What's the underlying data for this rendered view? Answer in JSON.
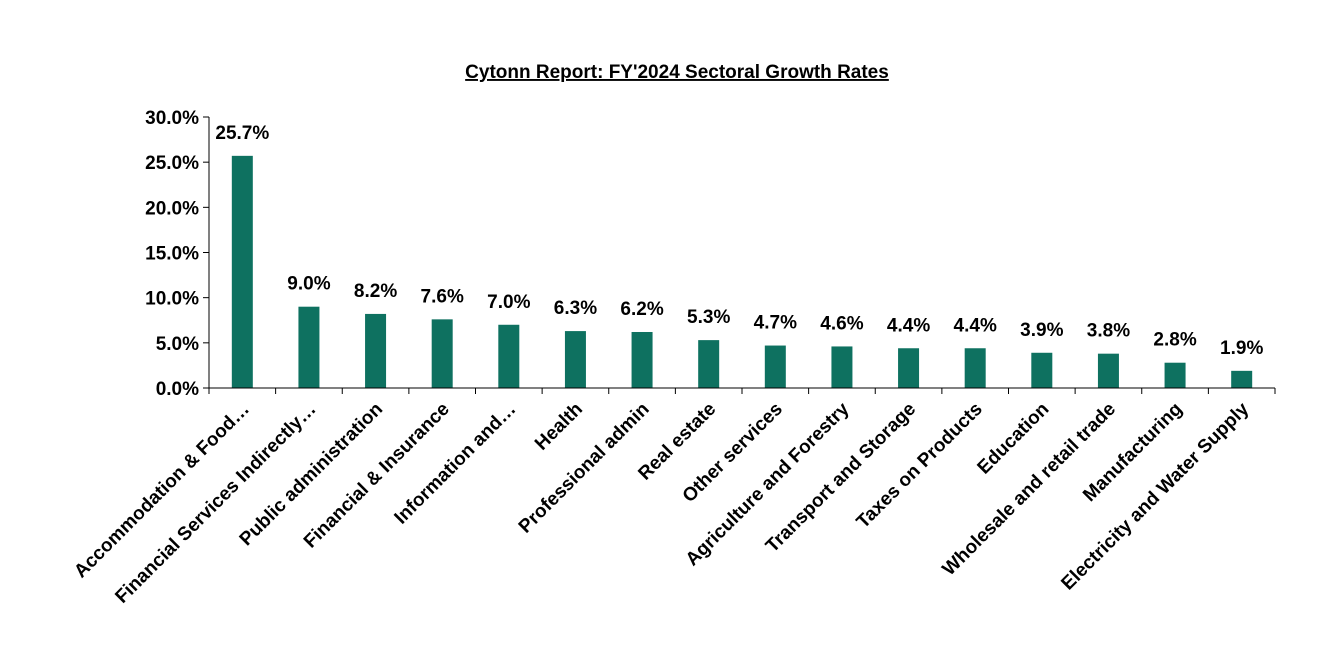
{
  "chart_data": {
    "type": "bar",
    "title": "Cytonn Report: FY'2024 Sectoral Growth Rates",
    "xlabel": "",
    "ylabel": "",
    "ylim": [
      0,
      30
    ],
    "y_ticks": [
      "0.0%",
      "5.0%",
      "10.0%",
      "15.0%",
      "20.0%",
      "25.0%",
      "30.0%"
    ],
    "bar_color": "#0E7160",
    "grid": false,
    "legend": "none",
    "categories": [
      "Accommodation & Food…",
      "Financial Services Indirectly…",
      "Public administration",
      "Financial & Insurance",
      "Information and…",
      "Health",
      "Professional admin",
      "Real estate",
      "Other services",
      "Agriculture and Forestry",
      "Transport and Storage",
      "Taxes on Products",
      "Education",
      "Wholesale and retail trade",
      "Manufacturing",
      "Electricity and Water Supply"
    ],
    "values": [
      25.7,
      9.0,
      8.2,
      7.6,
      7.0,
      6.3,
      6.2,
      5.3,
      4.7,
      4.6,
      4.4,
      4.4,
      3.9,
      3.8,
      2.8,
      1.9
    ],
    "data_labels": [
      "25.7%",
      "9.0%",
      "8.2%",
      "7.6%",
      "7.0%",
      "6.3%",
      "6.2%",
      "5.3%",
      "4.7%",
      "4.6%",
      "4.4%",
      "4.4%",
      "3.9%",
      "3.8%",
      "2.8%",
      "1.9%"
    ]
  }
}
